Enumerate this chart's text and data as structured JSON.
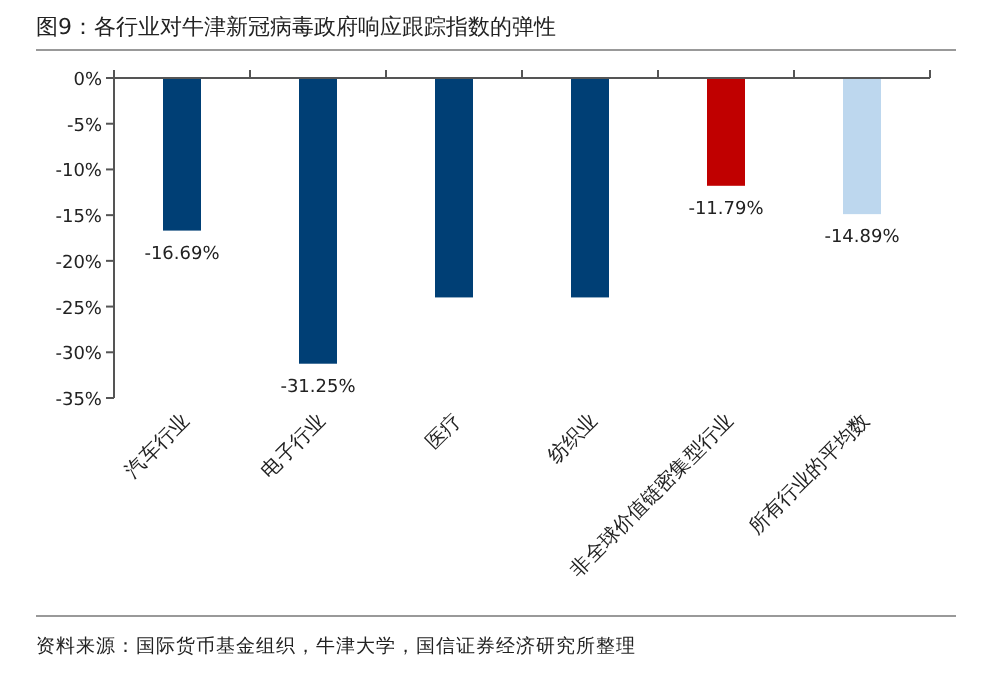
{
  "chart_data": {
    "type": "bar",
    "title": "图9：各行业对牛津新冠病毒政府响应跟踪指数的弹性",
    "categories": [
      "汽车行业",
      "电子行业",
      "医疗",
      "纺织业",
      "非全球价值链密集型行业",
      "所有行业的平均数"
    ],
    "values": [
      -16.69,
      -31.25,
      -24,
      -24,
      -11.79,
      -14.89
    ],
    "colors": [
      "#003f75",
      "#003f75",
      "#003f75",
      "#003f75",
      "#c00000",
      "#bdd7ee"
    ],
    "value_labels": [
      "-16.69%",
      "-31.25%",
      null,
      null,
      "-11.79%",
      "-14.89%"
    ],
    "ylim": [
      -35,
      0
    ],
    "yticks": [
      {
        "value": 0,
        "label": "0%"
      },
      {
        "value": -5,
        "label": "-5%"
      },
      {
        "value": -10,
        "label": "-10%"
      },
      {
        "value": -15,
        "label": "-15%"
      },
      {
        "value": -20,
        "label": "-20%"
      },
      {
        "value": -25,
        "label": "-25%"
      },
      {
        "value": -30,
        "label": "-30%"
      },
      {
        "value": -35,
        "label": "-35%"
      }
    ],
    "grid": false,
    "annotations": [
      "资料来源：国际货币基金组织，牛津大学，国信证券经济研究所整理"
    ]
  }
}
